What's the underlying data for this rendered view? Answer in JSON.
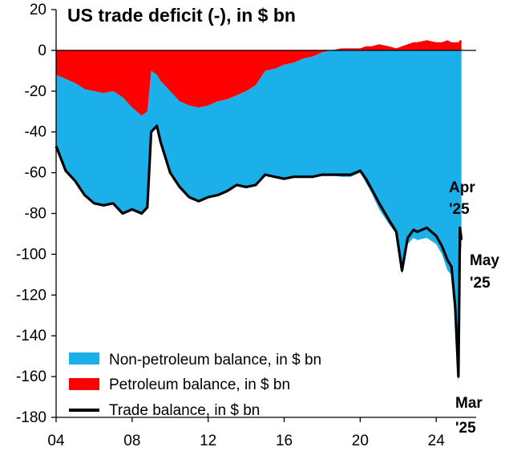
{
  "chart_data": {
    "type": "area",
    "title": "US trade deficit (-), in $ bn",
    "xlabel": "",
    "ylabel": "",
    "x_ticks": [
      {
        "x": 2004,
        "label": "04"
      },
      {
        "x": 2008,
        "label": "08"
      },
      {
        "x": 2012,
        "label": "12"
      },
      {
        "x": 2016,
        "label": "16"
      },
      {
        "x": 2020,
        "label": "20"
      },
      {
        "x": 2024,
        "label": "24"
      }
    ],
    "y_ticks": [
      20,
      0,
      -20,
      -40,
      -60,
      -80,
      -100,
      -120,
      -140,
      -160,
      -180
    ],
    "xlim": [
      2004,
      2026.1
    ],
    "ylim": [
      -180,
      20
    ],
    "grid": false,
    "legend_position": "bottom-left",
    "colors": {
      "non_petroleum": "#1bb0ea",
      "petroleum": "#ff0000",
      "trade_balance": "#000000",
      "axis": "#000000"
    },
    "series": [
      {
        "name": "Non-petroleum balance, in $ bn",
        "style": "area",
        "x": [
          2004.0,
          2004.5,
          2005.0,
          2005.5,
          2006.0,
          2006.5,
          2007.0,
          2007.5,
          2008.0,
          2008.5,
          2008.8,
          2009.0,
          2009.3,
          2009.5,
          2010.0,
          2010.5,
          2011.0,
          2011.5,
          2012.0,
          2012.5,
          2013.0,
          2013.5,
          2014.0,
          2014.5,
          2015.0,
          2015.5,
          2016.0,
          2016.5,
          2017.0,
          2017.5,
          2018.0,
          2018.5,
          2019.0,
          2019.5,
          2020.0,
          2020.3,
          2020.6,
          2021.0,
          2021.5,
          2021.9,
          2022.2,
          2022.5,
          2022.8,
          2023.0,
          2023.5,
          2024.0,
          2024.3,
          2024.6,
          2024.8,
          2025.0,
          2025.17,
          2025.25,
          2025.33
        ],
        "values": [
          -35,
          -45,
          -48,
          -52,
          -55,
          -55,
          -55,
          -57,
          -50,
          -48,
          -47,
          -30,
          -25,
          -30,
          -40,
          -42,
          -45,
          -46,
          -45,
          -46,
          -45,
          -44,
          -47,
          -49,
          -51,
          -53,
          -56,
          -56,
          -58,
          -59,
          -60,
          -61,
          -62,
          -62,
          -60,
          -65,
          -70,
          -78,
          -85,
          -90,
          -110,
          -95,
          -92,
          -93,
          -92,
          -95,
          -100,
          -108,
          -110,
          -130,
          -164,
          -92,
          -98
        ]
      },
      {
        "name": "Petroleum balance, in $ bn",
        "style": "area",
        "x": [
          2004.0,
          2004.5,
          2005.0,
          2005.5,
          2006.0,
          2006.5,
          2007.0,
          2007.5,
          2008.0,
          2008.5,
          2008.8,
          2009.0,
          2009.3,
          2009.5,
          2010.0,
          2010.5,
          2011.0,
          2011.5,
          2012.0,
          2012.5,
          2013.0,
          2013.5,
          2014.0,
          2014.5,
          2015.0,
          2015.5,
          2016.0,
          2016.5,
          2017.0,
          2017.5,
          2018.0,
          2018.5,
          2019.0,
          2019.5,
          2020.0,
          2020.3,
          2020.6,
          2021.0,
          2021.5,
          2021.9,
          2022.2,
          2022.5,
          2022.8,
          2023.0,
          2023.5,
          2024.0,
          2024.3,
          2024.6,
          2024.8,
          2025.0,
          2025.17,
          2025.25,
          2025.33
        ],
        "values": [
          -12,
          -14,
          -16,
          -19,
          -20,
          -21,
          -20,
          -23,
          -28,
          -32,
          -30,
          -10,
          -12,
          -15,
          -20,
          -25,
          -27,
          -28,
          -27,
          -25,
          -24,
          -22,
          -20,
          -17,
          -10,
          -9,
          -7,
          -6,
          -4,
          -3,
          -1,
          0,
          1,
          1,
          1,
          2,
          2,
          3,
          2,
          1,
          2,
          3,
          4,
          4,
          5,
          4,
          4,
          5,
          4,
          4,
          4,
          5,
          5
        ]
      },
      {
        "name": "Trade balance, in $ bn",
        "style": "line",
        "x": [
          2004.0,
          2004.5,
          2005.0,
          2005.5,
          2006.0,
          2006.5,
          2007.0,
          2007.5,
          2008.0,
          2008.5,
          2008.8,
          2009.0,
          2009.3,
          2009.5,
          2010.0,
          2010.5,
          2011.0,
          2011.5,
          2012.0,
          2012.5,
          2013.0,
          2013.5,
          2014.0,
          2014.5,
          2015.0,
          2015.5,
          2016.0,
          2016.5,
          2017.0,
          2017.5,
          2018.0,
          2018.5,
          2019.0,
          2019.5,
          2020.0,
          2020.3,
          2020.6,
          2021.0,
          2021.5,
          2021.9,
          2022.2,
          2022.5,
          2022.8,
          2023.0,
          2023.5,
          2024.0,
          2024.3,
          2024.6,
          2024.8,
          2025.0,
          2025.17,
          2025.25,
          2025.33
        ],
        "values": [
          -47,
          -59,
          -64,
          -71,
          -75,
          -76,
          -75,
          -80,
          -78,
          -80,
          -77,
          -40,
          -37,
          -45,
          -60,
          -67,
          -72,
          -74,
          -72,
          -71,
          -69,
          -66,
          -67,
          -66,
          -61,
          -62,
          -63,
          -62,
          -62,
          -62,
          -61,
          -61,
          -61,
          -61,
          -59,
          -63,
          -68,
          -75,
          -83,
          -89,
          -108,
          -92,
          -88,
          -89,
          -87,
          -91,
          -96,
          -103,
          -106,
          -126,
          -160,
          -87,
          -93
        ]
      }
    ],
    "annotations": [
      {
        "lines": [
          "Apr",
          "'25"
        ]
      },
      {
        "lines": [
          "May",
          "'25"
        ]
      },
      {
        "lines": [
          "Mar",
          "'25"
        ]
      }
    ]
  }
}
